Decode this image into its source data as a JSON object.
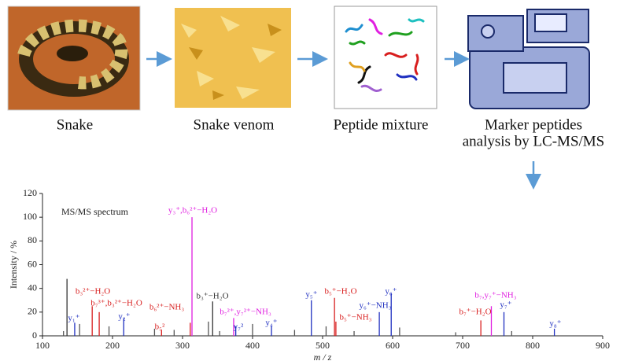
{
  "workflow": {
    "steps": [
      {
        "label": [
          "Snake"
        ]
      },
      {
        "label": [
          "Snake venom"
        ]
      },
      {
        "label": [
          "Peptide mixture"
        ]
      },
      {
        "label": [
          "Marker peptides",
          "analysis by LC-MS/MS"
        ]
      }
    ]
  },
  "chart_data": {
    "type": "stem",
    "annotation": "MS/MS spectrum",
    "xlabel": "m / z",
    "ylabel": "Intensity / %",
    "xlim": [
      100,
      900
    ],
    "xticks": [
      100,
      200,
      300,
      400,
      500,
      600,
      700,
      800,
      900
    ],
    "ylim": [
      0,
      120
    ],
    "yticks": [
      0,
      20,
      40,
      60,
      80,
      100,
      120
    ],
    "x": [
      135,
      146,
      171,
      181,
      216,
      270,
      311,
      313.5,
      343,
      373,
      376,
      427,
      484,
      517,
      519,
      581,
      598,
      726,
      741,
      759,
      831,
      130,
      153,
      195,
      260,
      288,
      337,
      353,
      400,
      460,
      505,
      545,
      610,
      690,
      770
    ],
    "values": [
      48,
      11,
      25,
      20,
      15,
      5,
      11,
      100,
      29,
      15,
      8,
      8,
      30,
      32,
      12,
      20,
      36,
      13,
      25,
      20,
      6,
      4,
      10,
      8,
      6,
      5,
      12,
      4,
      10,
      5,
      8,
      4,
      7,
      3,
      4
    ],
    "labels": [
      null,
      "y₁⁺",
      "b₃²⁺−H₂O",
      "b₇³⁺,b₃²⁺−H₂O",
      "y₂⁺",
      "b₅²",
      "b₆²⁺−NH₃",
      "y₃⁺,b₆²⁺−H₂O",
      "b₃⁺−H₂O",
      "b₇²⁺,y₇²⁺−NH₃",
      "y₇²",
      "y₄⁺",
      "y₅⁺",
      "b₅⁺−H₂O",
      "b₅⁺−NH₃",
      "y₆⁺−NH₃",
      "y₆⁺",
      "b₇⁺−H₂O",
      "b₇,y₇⁺−NH₃",
      "y₇⁺",
      "y₈⁺",
      null,
      null,
      null,
      null,
      null,
      null,
      null,
      null,
      null,
      null,
      null,
      null,
      null,
      null
    ],
    "colors": [
      "#333333",
      "#1f2fc0",
      "#d81e1e",
      "#d81e1e",
      "#1f2fc0",
      "#d81e1e",
      "#d81e1e",
      "#e020e0",
      "#333333",
      "#e020e0",
      "#1f2fc0",
      "#1f2fc0",
      "#1f2fc0",
      "#d81e1e",
      "#d81e1e",
      "#1f2fc0",
      "#1f2fc0",
      "#d81e1e",
      "#e020e0",
      "#1f2fc0",
      "#1f2fc0",
      "#555555",
      "#555555",
      "#555555",
      "#555555",
      "#555555",
      "#555555",
      "#555555",
      "#555555",
      "#555555",
      "#555555",
      "#555555",
      "#555555",
      "#555555",
      "#555555"
    ]
  }
}
